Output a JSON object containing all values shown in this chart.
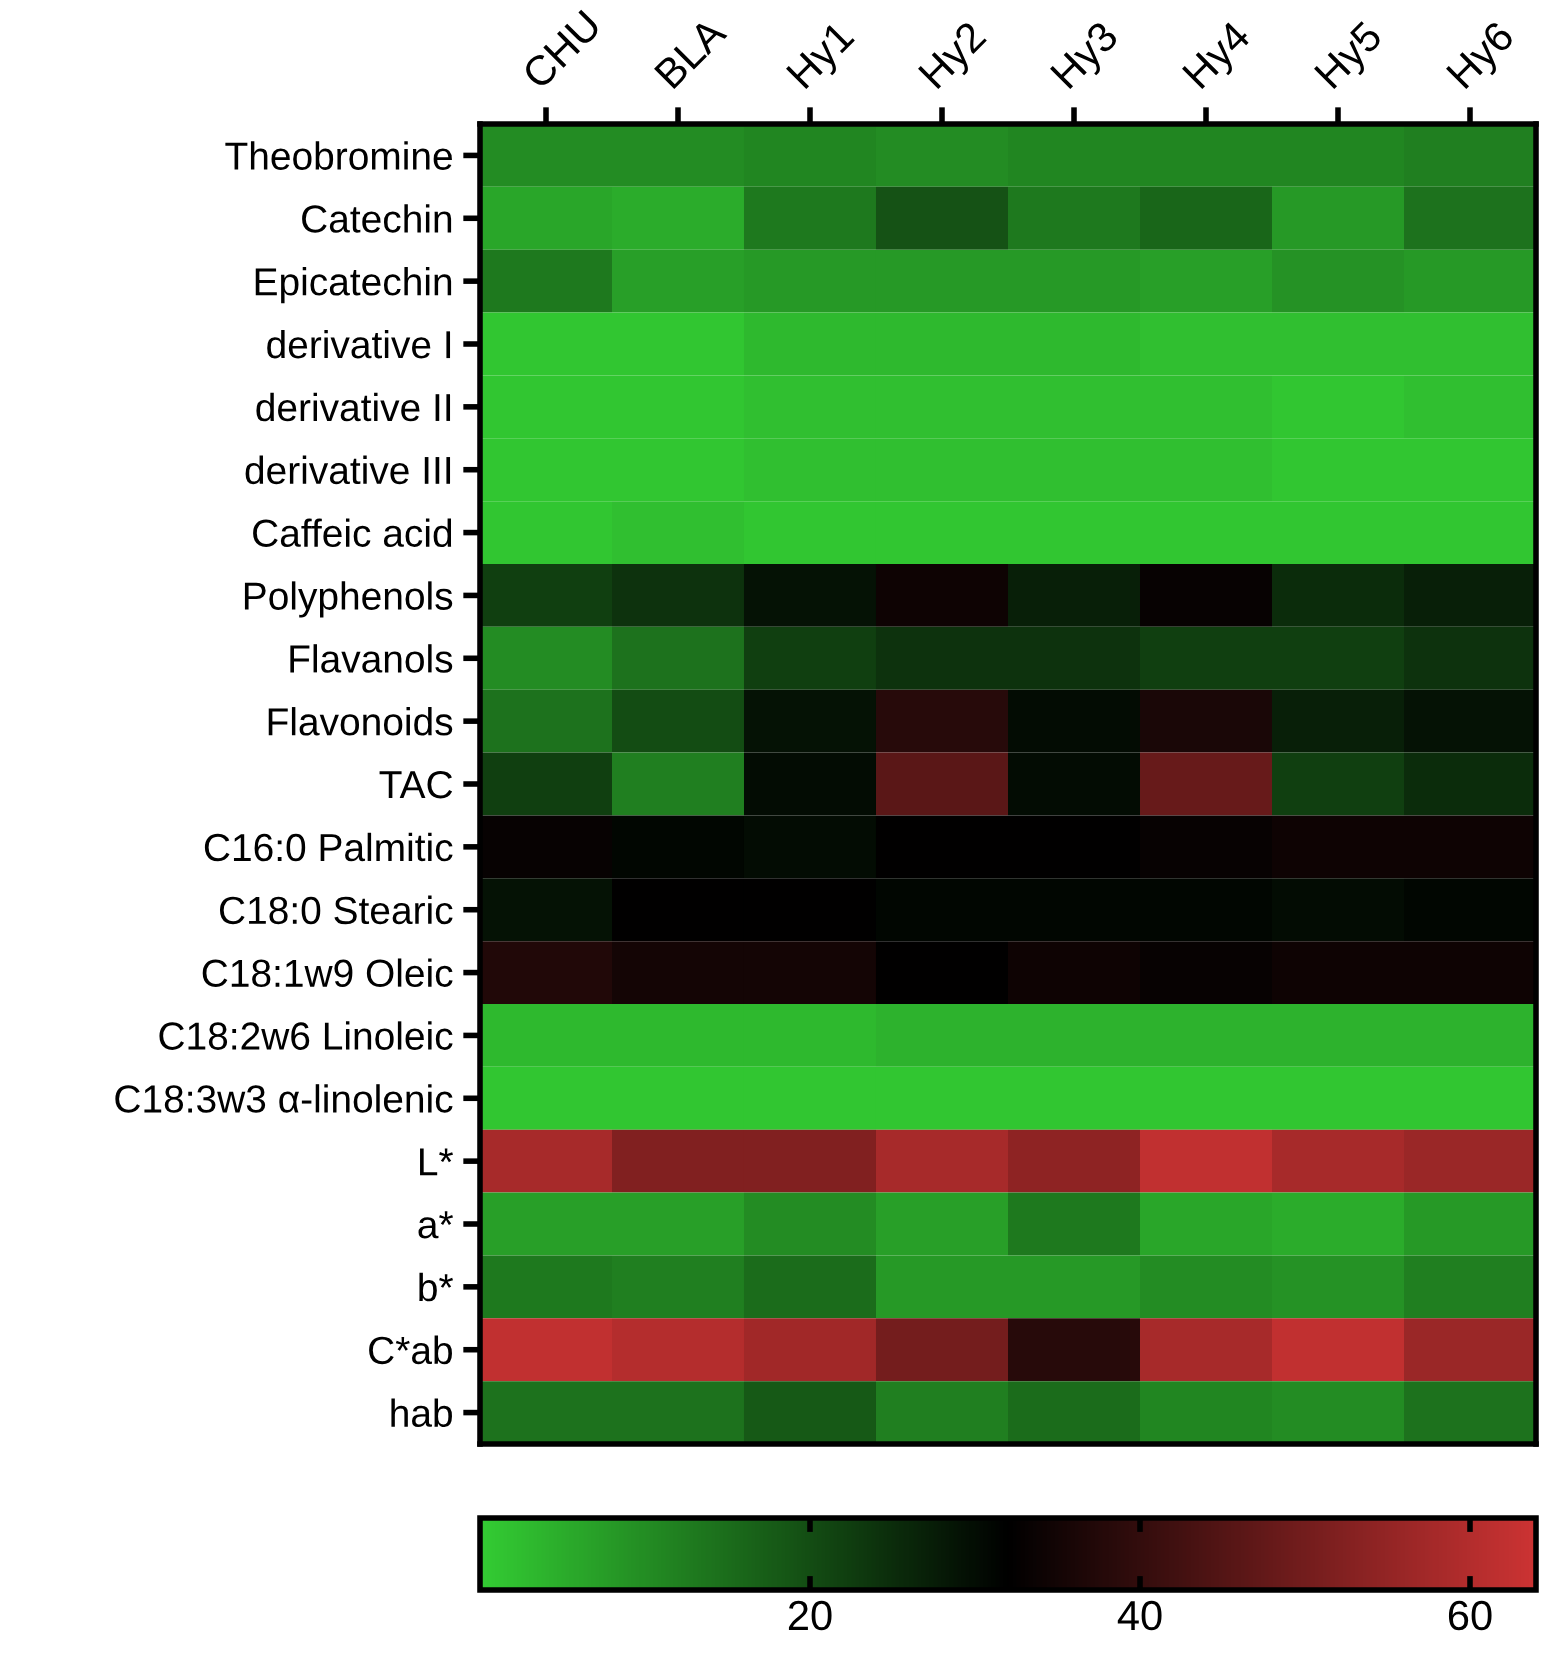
{
  "chart_data": {
    "type": "heatmap",
    "categories": [
      "CHU",
      "BLA",
      "Hy1",
      "Hy2",
      "Hy3",
      "Hy4",
      "Hy5",
      "Hy6"
    ],
    "y_categories": [
      "Theobromine",
      "Catechin",
      "Epicatechin",
      "derivative I",
      "derivative II",
      "derivative III",
      "Caffeic acid",
      "Polyphenols",
      "Flavanols",
      "Flavonoids",
      "TAC",
      "C16:0 Palmitic",
      "C18:0 Stearic",
      "C18:1w9 Oleic",
      "C18:2w6 Linoleic",
      "C18:3w3 α-linolenic",
      "L*",
      "a*",
      "b*",
      "C*ab",
      "hab"
    ],
    "cells": [
      [
        10,
        10,
        11,
        10,
        11,
        11,
        11,
        12
      ],
      [
        6,
        5,
        13,
        19,
        13,
        16,
        8,
        14
      ],
      [
        13,
        7,
        8,
        8,
        8,
        7,
        9,
        8
      ],
      [
        1,
        1,
        3,
        3,
        3,
        2,
        2,
        2
      ],
      [
        1,
        1,
        2,
        2,
        2,
        2,
        1,
        2
      ],
      [
        1,
        1,
        2,
        2,
        2,
        2,
        1,
        1
      ],
      [
        1,
        2,
        1,
        1,
        1,
        1,
        1,
        1
      ],
      [
        22,
        24,
        29,
        34,
        27,
        33,
        25,
        27
      ],
      [
        10,
        14,
        22,
        24,
        24,
        22,
        22,
        24
      ],
      [
        14,
        20,
        29,
        38,
        30,
        36,
        27,
        29
      ],
      [
        22,
        12,
        30,
        46,
        30,
        48,
        22,
        25
      ],
      [
        33,
        31,
        30,
        32,
        32,
        33,
        34,
        34
      ],
      [
        29,
        32,
        32,
        31,
        31,
        31,
        30,
        31
      ],
      [
        37,
        35,
        35,
        32,
        34,
        33,
        34,
        34
      ],
      [
        3,
        3,
        3,
        4,
        4,
        4,
        4,
        4
      ],
      [
        1,
        1,
        1,
        1,
        1,
        1,
        1,
        1
      ],
      [
        58,
        52,
        52,
        58,
        54,
        62,
        58,
        56
      ],
      [
        7,
        7,
        10,
        7,
        13,
        6,
        5,
        8
      ],
      [
        13,
        12,
        15,
        8,
        8,
        10,
        9,
        12
      ],
      [
        62,
        60,
        57,
        50,
        38,
        58,
        62,
        56
      ],
      [
        14,
        14,
        18,
        12,
        15,
        11,
        10,
        14
      ]
    ],
    "colors": [
      "#33cc33",
      "#000000",
      "#cc3333"
    ],
    "clim": [
      0,
      64
    ],
    "cticks": [
      20,
      40,
      60
    ]
  }
}
